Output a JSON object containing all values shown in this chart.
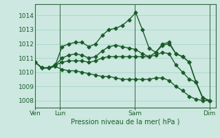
{
  "background_color": "#cce8e0",
  "grid_color": "#99ccbb",
  "line_color": "#1a5c2a",
  "marker": "D",
  "markersize": 2.5,
  "linewidth": 1.0,
  "ylim": [
    1007.5,
    1014.8
  ],
  "yticks": [
    1008,
    1009,
    1010,
    1011,
    1012,
    1013,
    1014
  ],
  "xlabel": "Pression niveau de la mer( hPa )",
  "xlabel_ticks_x": [
    0,
    8,
    32,
    56
  ],
  "xlabel_labels": [
    "Ven",
    "Lun",
    "Sam",
    "Dim"
  ],
  "xlim": [
    0,
    58
  ],
  "series": [
    [
      1010.7,
      1010.3,
      1010.3,
      1010.5,
      1011.8,
      1012.0,
      1012.1,
      1012.1,
      1011.8,
      1012.0,
      1012.6,
      1013.0,
      1013.1,
      1013.3,
      1013.7,
      1014.2,
      1013.0,
      1011.7,
      1011.4,
      1012.0,
      1012.1,
      1011.3,
      1011.1,
      1010.7,
      1009.3,
      1008.2,
      1008.0
    ],
    [
      1010.7,
      1010.3,
      1010.3,
      1010.5,
      1011.0,
      1011.2,
      1011.3,
      1011.2,
      1011.0,
      1011.1,
      1011.5,
      1011.8,
      1011.9,
      1011.8,
      1011.7,
      1011.6,
      1011.3,
      1011.1,
      1011.4,
      1011.9,
      1012.0,
      1011.3,
      1011.1,
      1010.7,
      1009.3,
      1008.2,
      1008.0
    ],
    [
      1010.7,
      1010.3,
      1010.3,
      1010.5,
      1010.7,
      1010.8,
      1010.8,
      1010.8,
      1010.7,
      1010.8,
      1011.0,
      1011.1,
      1011.1,
      1011.1,
      1011.1,
      1011.1,
      1011.1,
      1011.1,
      1011.2,
      1011.4,
      1011.3,
      1010.5,
      1010.0,
      1009.5,
      1009.3,
      1008.2,
      1008.0
    ],
    [
      1010.7,
      1010.3,
      1010.3,
      1010.4,
      1010.2,
      1010.1,
      1010.1,
      1010.0,
      1009.9,
      1009.8,
      1009.7,
      1009.7,
      1009.6,
      1009.5,
      1009.5,
      1009.5,
      1009.5,
      1009.5,
      1009.6,
      1009.6,
      1009.4,
      1009.0,
      1008.7,
      1008.3,
      1008.1,
      1008.0,
      1008.0
    ]
  ],
  "n_points": 27,
  "x_end": 56
}
